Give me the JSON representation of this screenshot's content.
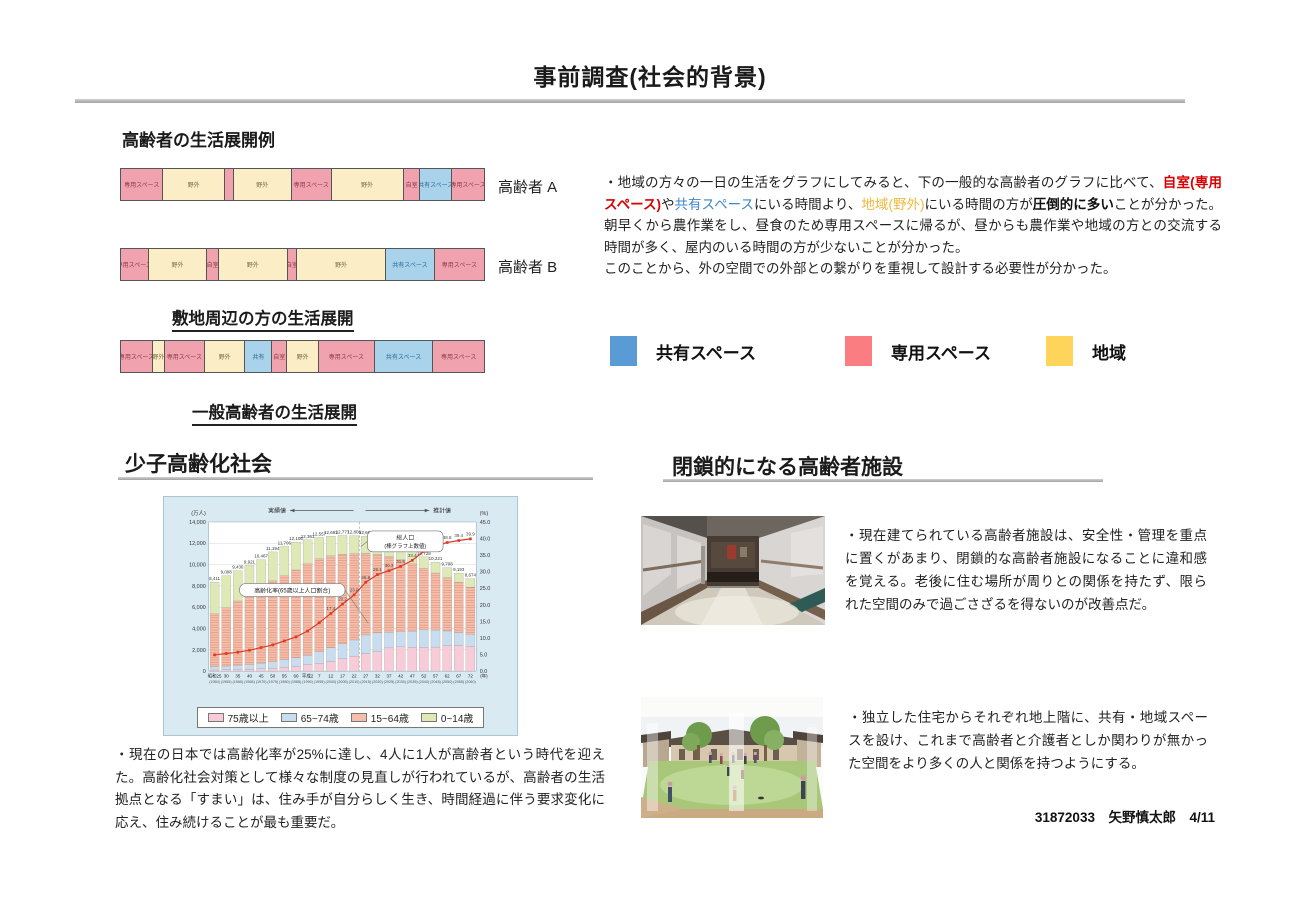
{
  "page": {
    "title": "事前調査(社会的背景)",
    "footer": "31872033　矢野慎太郎　4/11"
  },
  "life_examples": {
    "heading": "高齢者の生活展開例",
    "bar_a_label": "高齢者 A",
    "bar_b_label": "高齢者 B",
    "site_heading": "敷地周辺の方の生活展開",
    "general_heading": "一般高齢者の生活展開",
    "colors": {
      "private": "#F0A3AF",
      "region": "#FBEDC5",
      "shared": "#A9D3EA",
      "private_text": "#8a3a44",
      "region_text": "#7a6a40",
      "shared_text": "#2a6a9a"
    },
    "bars": {
      "a": [
        {
          "type": "private",
          "w": 11.7,
          "label": "専用スペース"
        },
        {
          "type": "region",
          "w": 16.9,
          "label": "野外"
        },
        {
          "type": "private",
          "w": 2.4,
          "label": ""
        },
        {
          "type": "region",
          "w": 16.1,
          "label": "野外"
        },
        {
          "type": "private",
          "w": 10.9,
          "label": "専用スペース"
        },
        {
          "type": "region",
          "w": 19.9,
          "label": "野外"
        },
        {
          "type": "private",
          "w": 4.6,
          "label": "自室"
        },
        {
          "type": "shared",
          "w": 8.7,
          "label": "共有スペース"
        },
        {
          "type": "private",
          "w": 8.8,
          "label": "専用スペース"
        }
      ],
      "b": [
        {
          "type": "private",
          "w": 7.6,
          "label": "専用スペース"
        },
        {
          "type": "region",
          "w": 16.2,
          "label": "野外"
        },
        {
          "type": "private",
          "w": 3.2,
          "label": "自室"
        },
        {
          "type": "region",
          "w": 18.9,
          "label": "野外"
        },
        {
          "type": "private",
          "w": 2.7,
          "label": "自室"
        },
        {
          "type": "region",
          "w": 24.4,
          "label": "野外"
        },
        {
          "type": "shared",
          "w": 13.5,
          "label": "共有スペース"
        },
        {
          "type": "private",
          "w": 13.5,
          "label": "専用スペース"
        }
      ],
      "c": [
        {
          "type": "private",
          "w": 8.8,
          "label": "専用スペース"
        },
        {
          "type": "region",
          "w": 3.3,
          "label": "野外"
        },
        {
          "type": "private",
          "w": 11.0,
          "label": "専用スペース"
        },
        {
          "type": "region",
          "w": 11.2,
          "label": "野外"
        },
        {
          "type": "shared",
          "w": 7.4,
          "label": "共有"
        },
        {
          "type": "private",
          "w": 4.1,
          "label": "自室"
        },
        {
          "type": "region",
          "w": 8.8,
          "label": "野外"
        },
        {
          "type": "private",
          "w": 15.3,
          "label": "専用スペース"
        },
        {
          "type": "shared",
          "w": 16.2,
          "label": "共有スペース"
        },
        {
          "type": "private",
          "w": 13.9,
          "label": "専用スペース"
        }
      ]
    }
  },
  "analysis": {
    "paragraph": [
      {
        "t": "・地域の方々の一日の生活をグラフにしてみると、下の一般的な高齢者のグラフに比べて、",
        "s": "n"
      },
      {
        "t": "自室(専用スペース)",
        "s": "r"
      },
      {
        "t": "や",
        "s": "n"
      },
      {
        "t": "共有スペース",
        "s": "b"
      },
      {
        "t": "にいる時間より、",
        "s": "n"
      },
      {
        "t": "地域(野外)",
        "s": "y"
      },
      {
        "t": "にいる時間の方が",
        "s": "n"
      },
      {
        "t": "圧倒的に多い",
        "s": "bold"
      },
      {
        "t": "ことが分かった。朝早くから農作業をし、昼食のため専用スペースに帰るが、昼からも農作業や地域の方との交流する時間が多く、屋内のいる時間の方が少ないことが分かった。",
        "s": "n"
      },
      {
        "br": true
      },
      {
        "t": "このことから、外の空間での外部との繋がりを重視して設計する必要性が分かった。",
        "s": "n"
      }
    ],
    "legend": [
      {
        "label": "共有スペース",
        "color": "#5B9BD5"
      },
      {
        "label": "専用スペース",
        "color": "#FA7D81"
      },
      {
        "label": "地域",
        "color": "#FFD45B"
      }
    ]
  },
  "aging_section": {
    "heading": "少子高齢化社会",
    "paragraph": "・現在の日本では高齢化率が25%に達し、4人に1人が高齢者という時代を迎えた。高齢化社会対策として様々な制度の見直しが行われているが、高齢者の生活拠点となる「すまい」は、住み手が自分らしく生き、時間経過に伴う要求変化に応え、住み続けることが最も重要だ。"
  },
  "chart_data": {
    "type": "bar",
    "stacked": true,
    "categories_era": [
      "昭和25",
      "30",
      "35",
      "40",
      "45",
      "50",
      "55",
      "60",
      "平成2",
      "7",
      "12",
      "17",
      "22",
      "27",
      "32",
      "37",
      "42",
      "47",
      "52",
      "57",
      "62",
      "67",
      "72"
    ],
    "categories_year": [
      "(1950)",
      "(1955)",
      "(1960)",
      "(1965)",
      "(1970)",
      "(1975)",
      "(1980)",
      "(1985)",
      "(1990)",
      "(1995)",
      "(2000)",
      "(2005)",
      "(2010)",
      "(2015)",
      "(2020)",
      "(2025)",
      "(2030)",
      "(2035)",
      "(2040)",
      "(2045)",
      "(2050)",
      "(2055)",
      "(2060)"
    ],
    "x_unit": "(年)",
    "series": [
      {
        "name": "75歳以上",
        "color": "#F7CBD8",
        "values": [
          106,
          139,
          164,
          189,
          221,
          284,
          366,
          471,
          597,
          717,
          900,
          1160,
          1407,
          1646,
          1879,
          2179,
          2278,
          2245,
          2223,
          2257,
          2385,
          2401,
          2336
        ]
      },
      {
        "name": "65~74歳",
        "color": "#C9DDF0",
        "values": [
          309,
          338,
          376,
          434,
          516,
          602,
          699,
          776,
          892,
          1109,
          1301,
          1407,
          1517,
          1749,
          1733,
          1479,
          1407,
          1495,
          1645,
          1600,
          1383,
          1225,
          1128
        ]
      },
      {
        "name": "15~64歳",
        "color": "#F5BFAC",
        "hatch": "#E08B6D",
        "values": [
          4966,
          5473,
          6047,
          6744,
          7212,
          7581,
          7883,
          8251,
          8590,
          8716,
          8622,
          8409,
          8103,
          7682,
          7341,
          7084,
          6773,
          6343,
          5787,
          5353,
          5001,
          4706,
          4418
        ]
      },
      {
        "name": "0~14歳",
        "color": "#DEE9B6",
        "values": [
          2979,
          3012,
          2843,
          2553,
          2515,
          2722,
          2751,
          2603,
          2249,
          2001,
          1847,
          1752,
          1680,
          1583,
          1457,
          1324,
          1204,
          1129,
          1073,
          1012,
          939,
          861,
          791
        ]
      }
    ],
    "totals": [
      8411,
      9008,
      9430,
      9921,
      10467,
      11194,
      11706,
      12105,
      12361,
      12557,
      12693,
      12777,
      12806,
      12660,
      12410,
      12066,
      11662,
      11212,
      10728,
      10221,
      9708,
      9193,
      8674
    ],
    "line": {
      "name": "高齢化率",
      "color": "#DD3A28",
      "axis": "right",
      "values": [
        4.9,
        5.3,
        5.7,
        6.3,
        7.1,
        7.9,
        9.1,
        10.3,
        12.1,
        14.6,
        17.4,
        20.2,
        23.0,
        26.8,
        29.1,
        30.3,
        31.6,
        33.4,
        36.1,
        37.7,
        38.8,
        39.4,
        39.9
      ]
    },
    "left_axis": {
      "label": "(万人)",
      "max": 14000,
      "step": 2000
    },
    "right_axis": {
      "label": "(%)",
      "max": 45,
      "step": 5
    },
    "annotations": {
      "actual": "実績値",
      "projection": "推計値",
      "total_callout_1": "総人口",
      "total_callout_2": "(棒グラフ上数値)",
      "rate_callout": "高齢化率(65歳以上人口割合)"
    },
    "divider_index": 12.97,
    "panel_bg": "#D9EAF3",
    "legend_position": "bottom",
    "grid": true
  },
  "facility_section": {
    "heading": "閉鎖的になる高齢者施設",
    "text1": "・現在建てられている高齢者施設は、安全性・管理を重点に置くがあまり、閉鎖的な高齢者施設になることに違和感を覚える。老後に住む場所が周りとの関係を持たず、限られた空間のみで過ごさざるを得ないのが改善点だ。",
    "text2": "・独立した住宅からそれぞれ地上階に、共有・地域スペースを設け、これまで高齢者と介護者としか関わりが無かった空間をより多くの人と関係を持つようにする。"
  }
}
